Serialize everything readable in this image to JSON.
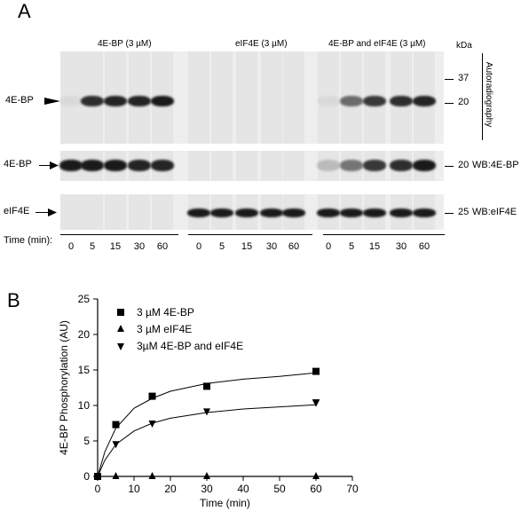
{
  "panel_a": {
    "letter": "A",
    "groups": [
      "4E-BP (3 µM)",
      "eIF4E (3 µM)",
      "4E-BP and eIF4E (3 µM)"
    ],
    "kda_label": "kDa",
    "markers_top": [
      "37",
      "20"
    ],
    "autoradiography_label": "Autoradiography",
    "row_labels": {
      "autorad": "4E-BP",
      "wb_4ebp": "4E-BP",
      "wb_eif4e": "eIF4E"
    },
    "wb_labels": {
      "wb_4ebp": "WB:4E-BP",
      "wb_eif4e": "WB:eIF4E"
    },
    "wb_markers": {
      "wb_4ebp": "20",
      "wb_eif4e": "25"
    },
    "time_label": "Time (min):",
    "times": [
      "0",
      "5",
      "15",
      "30",
      "60"
    ],
    "autorad_intensity": [
      [
        0.05,
        0.9,
        0.95,
        0.95,
        1.0
      ],
      [
        0.0,
        0.0,
        0.0,
        0.0,
        0.0
      ],
      [
        0.05,
        0.6,
        0.85,
        0.9,
        0.95
      ]
    ],
    "wb4ebp_intensity": [
      [
        1.0,
        1.0,
        1.0,
        0.95,
        0.95
      ],
      [
        0.0,
        0.0,
        0.0,
        0.0,
        0.0
      ],
      [
        0.2,
        0.55,
        0.85,
        0.9,
        1.0
      ]
    ],
    "wbeif4e_intensity": [
      [
        0.0,
        0.0,
        0.0,
        0.0,
        0.0
      ],
      [
        1.0,
        1.0,
        1.0,
        1.0,
        1.0
      ],
      [
        1.0,
        1.0,
        1.0,
        1.0,
        1.0
      ]
    ]
  },
  "panel_b": {
    "letter": "B",
    "chart_data": {
      "type": "scatter",
      "xlabel": "Time (min)",
      "ylabel": "4E-BP Phosphorylation (AU)",
      "xlim": [
        0,
        70
      ],
      "ylim": [
        0,
        25
      ],
      "xticks": [
        0,
        10,
        20,
        30,
        40,
        50,
        60,
        70
      ],
      "yticks": [
        0,
        5,
        10,
        15,
        20,
        25
      ],
      "legend_position": "top-left",
      "series": [
        {
          "name": "3 µM 4E-BP",
          "marker": "square",
          "x": [
            0,
            5,
            15,
            30,
            60
          ],
          "y": [
            0,
            7.3,
            11.3,
            12.7,
            14.8
          ],
          "fit": {
            "x": [
              0,
              2,
              5,
              10,
              15,
              20,
              30,
              40,
              50,
              60
            ],
            "y": [
              0,
              3.5,
              6.8,
              9.6,
              11.0,
              12.0,
              13.1,
              13.7,
              14.1,
              14.6
            ]
          }
        },
        {
          "name": "3 µM eIF4E",
          "marker": "triangle-up",
          "x": [
            0,
            5,
            15,
            30,
            60
          ],
          "y": [
            0,
            0,
            0,
            0,
            0
          ]
        },
        {
          "name": "3µM 4E-BP and eIF4E",
          "marker": "triangle-down",
          "x": [
            0,
            5,
            15,
            30,
            60
          ],
          "y": [
            0,
            4.6,
            7.5,
            9.2,
            10.4
          ],
          "fit": {
            "x": [
              0,
              2,
              5,
              10,
              15,
              20,
              30,
              40,
              50,
              60
            ],
            "y": [
              0,
              2.3,
              4.5,
              6.4,
              7.5,
              8.2,
              9.0,
              9.5,
              9.8,
              10.1
            ]
          }
        }
      ]
    }
  }
}
